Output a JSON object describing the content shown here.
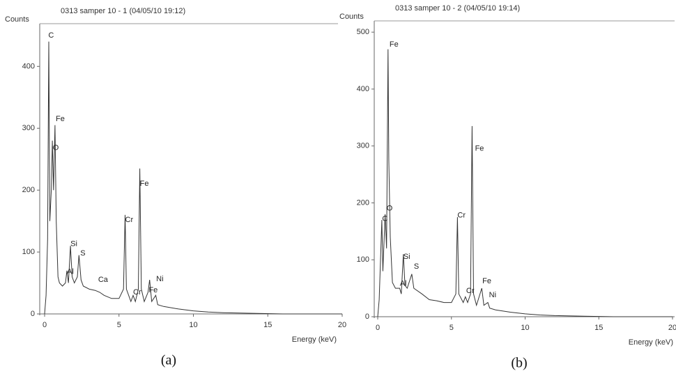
{
  "chart_data": [
    {
      "type": "line",
      "title": "0313 samper 10 - 1 (04/05/10 19:12)",
      "ylabel": "Counts",
      "xlabel": "Energy (keV)",
      "caption": "(a)",
      "xlim": [
        0,
        20
      ],
      "ylim": [
        0,
        460
      ],
      "xticks": [
        0,
        5,
        10,
        15,
        20
      ],
      "yticks": [
        0,
        100,
        200,
        300,
        400
      ],
      "color": "#333333",
      "series": [
        {
          "x": [
            0,
            0.1,
            0.2,
            0.28,
            0.35,
            0.45,
            0.52,
            0.6,
            0.7,
            0.78,
            0.9,
            1.0,
            1.2,
            1.4,
            1.5,
            1.6,
            1.74,
            1.85,
            2.0,
            2.2,
            2.31,
            2.45,
            2.6,
            3.0,
            3.4,
            3.7,
            4.0,
            4.5,
            5.0,
            5.3,
            5.41,
            5.5,
            5.8,
            5.95,
            6.1,
            6.3,
            6.4,
            6.5,
            6.7,
            6.95,
            7.06,
            7.2,
            7.47,
            7.6,
            8,
            9,
            10,
            11,
            12,
            14,
            16,
            20
          ],
          "values": [
            0,
            30,
            120,
            440,
            150,
            200,
            280,
            200,
            305,
            150,
            60,
            50,
            45,
            50,
            70,
            50,
            110,
            60,
            50,
            60,
            95,
            55,
            45,
            40,
            38,
            35,
            30,
            25,
            25,
            40,
            160,
            40,
            20,
            30,
            20,
            40,
            235,
            40,
            20,
            35,
            55,
            20,
            30,
            15,
            12,
            8,
            5,
            3,
            2,
            1,
            0,
            0
          ]
        }
      ],
      "annotations": [
        {
          "text": "C",
          "x": 0.25,
          "y": 450
        },
        {
          "text": "Fe",
          "x": 0.75,
          "y": 315
        },
        {
          "text": "O",
          "x": 0.55,
          "y": 268
        },
        {
          "text": "Si",
          "x": 1.74,
          "y": 113
        },
        {
          "text": "S",
          "x": 2.4,
          "y": 98
        },
        {
          "text": "Al",
          "x": 1.5,
          "y": 68
        },
        {
          "text": "Ca",
          "x": 3.6,
          "y": 55
        },
        {
          "text": "Cr",
          "x": 5.41,
          "y": 152
        },
        {
          "text": "Cr",
          "x": 5.95,
          "y": 35
        },
        {
          "text": "Fe",
          "x": 6.4,
          "y": 210
        },
        {
          "text": "Fe",
          "x": 7.0,
          "y": 38
        },
        {
          "text": "Ni",
          "x": 7.5,
          "y": 56
        }
      ]
    },
    {
      "type": "line",
      "title": "0313 samper 10 - 2 (04/05/10 19:14)",
      "ylabel": "Counts",
      "xlabel": "Energy (keV)",
      "caption": "(b)",
      "xlim": [
        0,
        20
      ],
      "ylim": [
        0,
        510
      ],
      "xticks": [
        0,
        5,
        10,
        15,
        20
      ],
      "yticks": [
        0,
        100,
        200,
        300,
        400,
        500
      ],
      "color": "#333333",
      "series": [
        {
          "x": [
            0,
            0.1,
            0.28,
            0.35,
            0.5,
            0.6,
            0.7,
            0.75,
            0.85,
            1.0,
            1.2,
            1.49,
            1.6,
            1.74,
            1.85,
            2.0,
            2.31,
            2.45,
            3.0,
            3.5,
            4.0,
            4.5,
            5.0,
            5.3,
            5.41,
            5.5,
            5.8,
            5.95,
            6.1,
            6.3,
            6.4,
            6.5,
            6.7,
            7.06,
            7.2,
            7.47,
            7.6,
            8,
            9,
            10,
            11,
            12,
            14,
            16,
            20
          ],
          "values": [
            0,
            30,
            170,
            80,
            180,
            120,
            470,
            275,
            140,
            60,
            50,
            50,
            40,
            110,
            55,
            50,
            75,
            50,
            40,
            30,
            28,
            25,
            25,
            40,
            175,
            40,
            25,
            35,
            25,
            40,
            335,
            40,
            20,
            50,
            20,
            25,
            15,
            12,
            8,
            5,
            3,
            2,
            1,
            0,
            0
          ]
        }
      ],
      "annotations": [
        {
          "text": "Fe",
          "x": 0.8,
          "y": 478
        },
        {
          "text": "O",
          "x": 0.6,
          "y": 190
        },
        {
          "text": "C",
          "x": 0.3,
          "y": 172
        },
        {
          "text": "Si",
          "x": 1.74,
          "y": 105
        },
        {
          "text": "S",
          "x": 2.45,
          "y": 88
        },
        {
          "text": "Al",
          "x": 1.5,
          "y": 58
        },
        {
          "text": "Cr",
          "x": 5.41,
          "y": 178
        },
        {
          "text": "Cr",
          "x": 6.0,
          "y": 45
        },
        {
          "text": "Fe",
          "x": 6.6,
          "y": 295
        },
        {
          "text": "Fe",
          "x": 7.1,
          "y": 62
        },
        {
          "text": "Ni",
          "x": 7.55,
          "y": 38
        }
      ]
    }
  ]
}
